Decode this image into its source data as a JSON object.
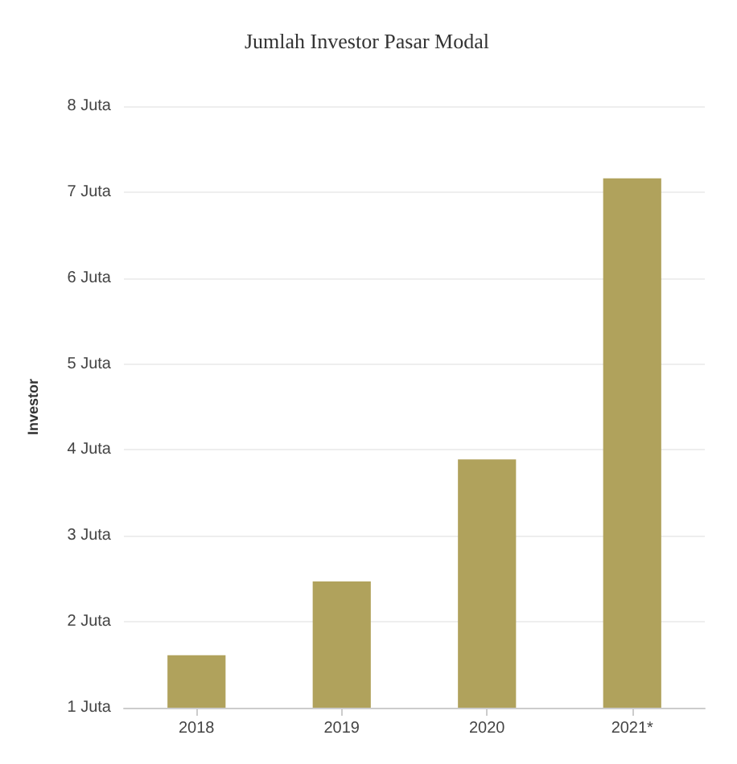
{
  "chart_data": {
    "type": "bar",
    "title": "Jumlah Investor Pasar Modal",
    "ylabel": "Investor",
    "categories": [
      "2018",
      "2019",
      "2020",
      "2021*"
    ],
    "values": [
      1.61,
      2.47,
      3.89,
      7.16
    ],
    "color": "#b0a25c",
    "ylim": [
      1,
      8
    ],
    "yticks": [
      {
        "value": 1,
        "label": "1 Juta"
      },
      {
        "value": 2,
        "label": "2 Juta"
      },
      {
        "value": 3,
        "label": "3 Juta"
      },
      {
        "value": 4,
        "label": "4 Juta"
      },
      {
        "value": 5,
        "label": "5 Juta"
      },
      {
        "value": 6,
        "label": "6 Juta"
      },
      {
        "value": 7,
        "label": "7 Juta"
      },
      {
        "value": 8,
        "label": "8 Juta"
      }
    ],
    "grid": "y"
  }
}
